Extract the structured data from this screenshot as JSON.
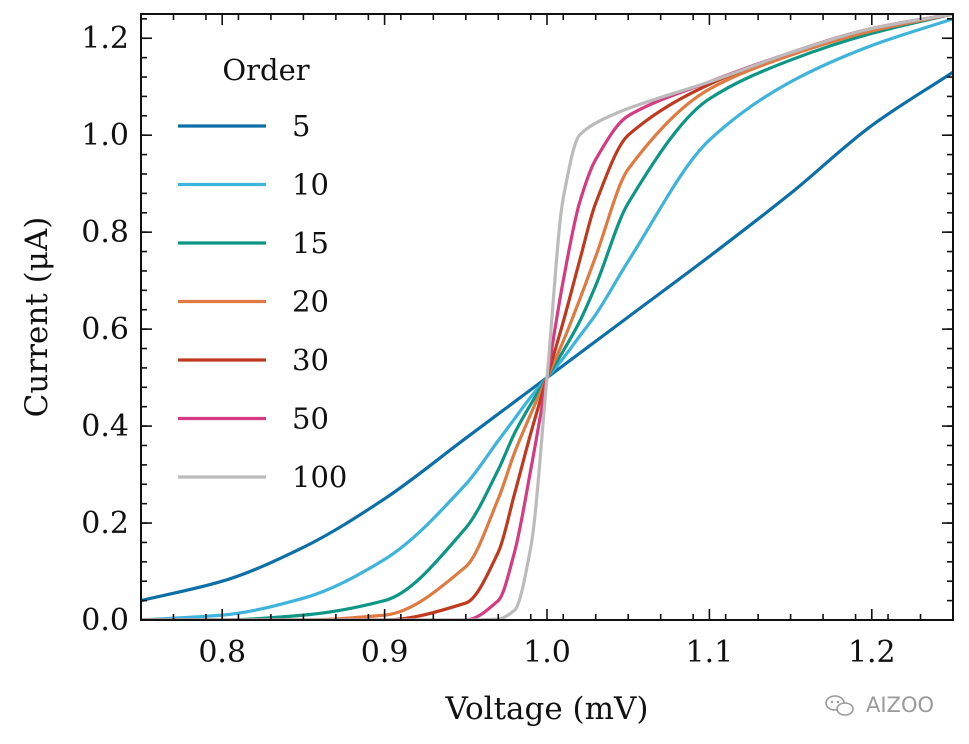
{
  "chart_data": {
    "type": "line",
    "title": "",
    "xlabel": "Voltage (mV)",
    "ylabel": "Current (μA)",
    "xlim": [
      0.75,
      1.25
    ],
    "ylim": [
      0.0,
      1.25
    ],
    "xticks": [
      0.8,
      0.9,
      1.0,
      1.1,
      1.2
    ],
    "xtick_labels": [
      "0.8",
      "0.9",
      "1.0",
      "1.1",
      "1.2"
    ],
    "yticks": [
      0.0,
      0.2,
      0.4,
      0.6,
      0.8,
      1.0,
      1.2
    ],
    "ytick_labels": [
      "0.0",
      "0.2",
      "0.4",
      "0.6",
      "0.8",
      "1.0",
      "1.2"
    ],
    "grid": false,
    "legend": {
      "title": "Order",
      "placement": "top-left"
    },
    "x": [
      0.75,
      0.8,
      0.85,
      0.9,
      0.95,
      0.97,
      0.98,
      0.99,
      1.0,
      1.01,
      1.02,
      1.03,
      1.05,
      1.1,
      1.15,
      1.2,
      1.25
    ],
    "series": [
      {
        "name": "5",
        "color": "#0C6FA8",
        "values": [
          0.04,
          0.08,
          0.15,
          0.25,
          0.375,
          0.425,
          0.45,
          0.475,
          0.5,
          0.525,
          0.55,
          0.575,
          0.625,
          0.75,
          0.88,
          1.02,
          1.13
        ]
      },
      {
        "name": "10",
        "color": "#3CB4DC",
        "values": [
          0.0,
          0.01,
          0.045,
          0.125,
          0.28,
          0.37,
          0.415,
          0.46,
          0.5,
          0.54,
          0.585,
          0.63,
          0.74,
          0.99,
          1.11,
          1.185,
          1.24
        ]
      },
      {
        "name": "15",
        "color": "#0C9686",
        "values": [
          0.0,
          0.0,
          0.01,
          0.04,
          0.19,
          0.31,
          0.385,
          0.445,
          0.5,
          0.555,
          0.615,
          0.69,
          0.86,
          1.075,
          1.155,
          1.21,
          1.25
        ]
      },
      {
        "name": "20",
        "color": "#E07A40",
        "values": [
          0.0,
          0.0,
          0.0,
          0.01,
          0.11,
          0.25,
          0.345,
          0.425,
          0.5,
          0.575,
          0.66,
          0.75,
          0.93,
          1.095,
          1.165,
          1.215,
          1.25
        ]
      },
      {
        "name": "30",
        "color": "#C0391E",
        "values": [
          0.0,
          0.0,
          0.0,
          0.0,
          0.035,
          0.14,
          0.26,
          0.385,
          0.5,
          0.615,
          0.74,
          0.86,
          1.0,
          1.105,
          1.17,
          1.22,
          1.25
        ]
      },
      {
        "name": "50",
        "color": "#D63A80",
        "values": [
          0.0,
          0.0,
          0.0,
          0.0,
          0.0,
          0.04,
          0.14,
          0.31,
          0.5,
          0.7,
          0.86,
          0.95,
          1.04,
          1.11,
          1.17,
          1.22,
          1.25
        ]
      },
      {
        "name": "100",
        "color": "#BBBBBB",
        "values": [
          0.0,
          0.0,
          0.0,
          0.0,
          0.0,
          0.002,
          0.02,
          0.15,
          0.5,
          0.87,
          1.0,
          1.025,
          1.055,
          1.11,
          1.17,
          1.22,
          1.25
        ]
      }
    ]
  },
  "watermark": {
    "text": "AIZOO",
    "icon": "wechat-icon"
  }
}
